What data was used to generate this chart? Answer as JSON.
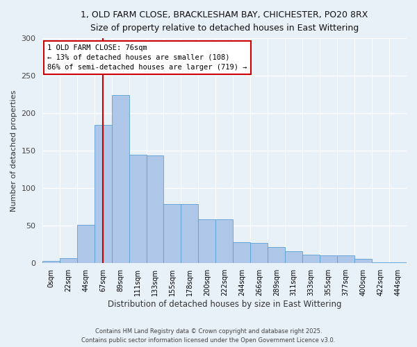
{
  "title_line1": "1, OLD FARM CLOSE, BRACKLESHAM BAY, CHICHESTER, PO20 8RX",
  "title_line2": "Size of property relative to detached houses in East Wittering",
  "xlabel": "Distribution of detached houses by size in East Wittering",
  "ylabel": "Number of detached properties",
  "footer_line1": "Contains HM Land Registry data © Crown copyright and database right 2025.",
  "footer_line2": "Contains public sector information licensed under the Open Government Licence v3.0.",
  "bin_labels": [
    "0sqm",
    "22sqm",
    "44sqm",
    "67sqm",
    "89sqm",
    "111sqm",
    "133sqm",
    "155sqm",
    "178sqm",
    "200sqm",
    "222sqm",
    "244sqm",
    "266sqm",
    "289sqm",
    "311sqm",
    "333sqm",
    "355sqm",
    "377sqm",
    "400sqm",
    "422sqm",
    "444sqm"
  ],
  "bar_heights": [
    3,
    7,
    51,
    184,
    224,
    145,
    144,
    79,
    79,
    59,
    59,
    28,
    27,
    22,
    16,
    11,
    10,
    10,
    6,
    1,
    1
  ],
  "bar_color": "#aec6e8",
  "bar_edge_color": "#5a9fd4",
  "background_color": "#e8f0f8",
  "grid_color": "#ffffff",
  "annotation_text": "1 OLD FARM CLOSE: 76sqm\n← 13% of detached houses are smaller (108)\n86% of semi-detached houses are larger (719) →",
  "annotation_box_color": "#ffffff",
  "annotation_box_edge": "#cc0000",
  "red_line_x": 3.5,
  "ylim": [
    0,
    300
  ],
  "yticks": [
    0,
    50,
    100,
    150,
    200,
    250,
    300
  ]
}
